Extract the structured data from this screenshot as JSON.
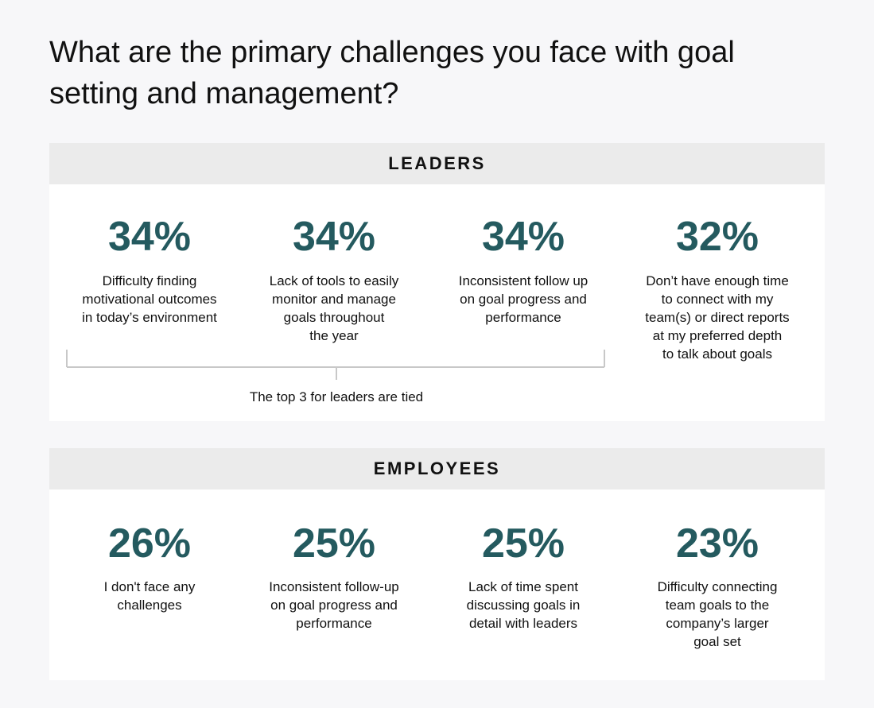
{
  "title": [
    "What are the primary challenges you face with goal",
    "setting and management?"
  ],
  "sections": [
    {
      "heading": "LEADERS",
      "stats": [
        {
          "value": "34%",
          "label": [
            "Difficulty finding",
            "motivational outcomes",
            "in today’s environment"
          ]
        },
        {
          "value": "34%",
          "label": [
            "Lack of tools to easily",
            "monitor and manage",
            "goals throughout",
            "the year"
          ]
        },
        {
          "value": "34%",
          "label": [
            "Inconsistent follow up",
            "on goal progress and",
            "performance"
          ]
        },
        {
          "value": "32%",
          "label": [
            "Don’t have enough time",
            "to connect with my",
            "team(s) or direct reports",
            "at my preferred depth",
            "to talk about goals"
          ]
        }
      ],
      "note": "The top 3 for leaders are tied"
    },
    {
      "heading": "EMPLOYEES",
      "stats": [
        {
          "value": "26%",
          "label": [
            "I don't face any",
            "challenges"
          ]
        },
        {
          "value": "25%",
          "label": [
            "Inconsistent follow-up",
            "on goal progress and",
            "performance"
          ]
        },
        {
          "value": "25%",
          "label": [
            "Lack of time spent",
            "discussing goals in",
            "detail with leaders"
          ]
        },
        {
          "value": "23%",
          "label": [
            "Difficulty connecting",
            "team goals to the",
            "company’s larger",
            "goal set"
          ]
        }
      ]
    }
  ]
}
